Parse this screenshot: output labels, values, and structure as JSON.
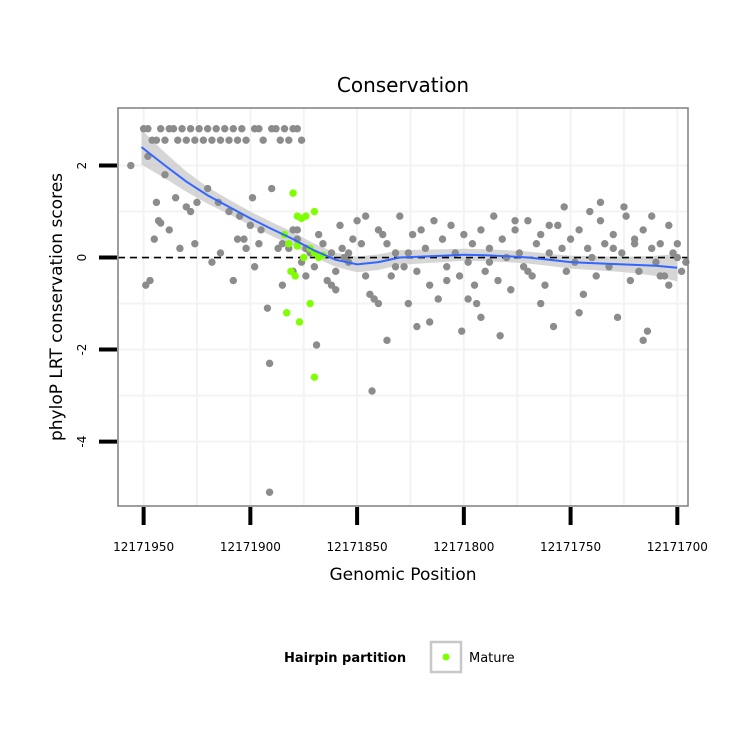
{
  "chart_data": {
    "type": "scatter",
    "title": "Conservation",
    "xlabel": "Genomic Position",
    "ylabel": "phyloP LRT conservation scores",
    "x_reversed": true,
    "xlim": [
      12171962,
      12171695
    ],
    "ylim": [
      -5.4,
      3.25
    ],
    "x_ticks": [
      12171950,
      12171900,
      12171850,
      12171800,
      12171750,
      12171700
    ],
    "x_tick_labels": [
      "12171950",
      "12171900",
      "12171850",
      "12171800",
      "12171750",
      "12171700"
    ],
    "y_ticks": [
      2,
      0,
      -2,
      -4
    ],
    "y_tick_labels": [
      "2",
      "0",
      "-2",
      "-4"
    ],
    "reference_line": {
      "y": 0,
      "style": "dashed"
    },
    "legend": {
      "title": "Hairpin partition",
      "entries": [
        {
          "label": "Mature",
          "color": "#7fff00"
        }
      ]
    },
    "colors": {
      "background_points": "#8c8c8c",
      "mature": "#7fff00",
      "smooth_line": "#3366ff",
      "confidence_band": "#c8c8c8"
    },
    "series": [
      {
        "name": "Other",
        "color": "#8c8c8c",
        "points": [
          [
            12171950,
            2.8
          ],
          [
            12171948,
            2.8
          ],
          [
            12171946,
            2.55
          ],
          [
            12171944,
            2.55
          ],
          [
            12171942,
            2.8
          ],
          [
            12171940,
            2.55
          ],
          [
            12171938,
            2.8
          ],
          [
            12171936,
            2.8
          ],
          [
            12171934,
            2.55
          ],
          [
            12171932,
            2.8
          ],
          [
            12171930,
            2.55
          ],
          [
            12171928,
            2.8
          ],
          [
            12171926,
            2.55
          ],
          [
            12171924,
            2.8
          ],
          [
            12171922,
            2.55
          ],
          [
            12171920,
            2.8
          ],
          [
            12171918,
            2.55
          ],
          [
            12171916,
            2.8
          ],
          [
            12171914,
            2.55
          ],
          [
            12171912,
            2.8
          ],
          [
            12171910,
            2.55
          ],
          [
            12171908,
            2.8
          ],
          [
            12171906,
            2.55
          ],
          [
            12171904,
            2.8
          ],
          [
            12171902,
            2.55
          ],
          [
            12171898,
            2.8
          ],
          [
            12171896,
            2.8
          ],
          [
            12171894,
            2.55
          ],
          [
            12171890,
            2.8
          ],
          [
            12171888,
            2.8
          ],
          [
            12171886,
            2.55
          ],
          [
            12171884,
            2.8
          ],
          [
            12171882,
            2.55
          ],
          [
            12171880,
            2.8
          ],
          [
            12171878,
            2.8
          ],
          [
            12171876,
            2.55
          ],
          [
            12171948,
            2.2
          ],
          [
            12171944,
            1.2
          ],
          [
            12171943,
            0.8
          ],
          [
            12171942,
            0.75
          ],
          [
            12171940,
            1.8
          ],
          [
            12171935,
            1.3
          ],
          [
            12171930,
            1.1
          ],
          [
            12171925,
            1.2
          ],
          [
            12171920,
            1.5
          ],
          [
            12171915,
            1.2
          ],
          [
            12171910,
            1.0
          ],
          [
            12171905,
            0.9
          ],
          [
            12171900,
            0.7
          ],
          [
            12171895,
            0.6
          ],
          [
            12171890,
            1.5
          ],
          [
            12171885,
            0.3
          ],
          [
            12171880,
            0.6
          ],
          [
            12171878,
            0.4
          ],
          [
            12171874,
            0.2
          ],
          [
            12171872,
            0.1
          ],
          [
            12171870,
            -0.2
          ],
          [
            12171868,
            0.5
          ],
          [
            12171866,
            0.3
          ],
          [
            12171864,
            -0.5
          ],
          [
            12171862,
            0.1
          ],
          [
            12171860,
            -0.3
          ],
          [
            12171858,
            0.7
          ],
          [
            12171856,
            0.0
          ],
          [
            12171854,
            -0.1
          ],
          [
            12171852,
            0.4
          ],
          [
            12171850,
            0.8
          ],
          [
            12171848,
            0.3
          ],
          [
            12171846,
            0.9
          ],
          [
            12171844,
            -0.8
          ],
          [
            12171842,
            -0.9
          ],
          [
            12171840,
            0.6
          ],
          [
            12171838,
            0.5
          ],
          [
            12171836,
            0.3
          ],
          [
            12171834,
            -0.4
          ],
          [
            12171832,
            0.1
          ],
          [
            12171830,
            0.9
          ],
          [
            12171828,
            -0.2
          ],
          [
            12171826,
            0.1
          ],
          [
            12171824,
            0.5
          ],
          [
            12171822,
            -0.3
          ],
          [
            12171820,
            0.6
          ],
          [
            12171818,
            0.2
          ],
          [
            12171816,
            -0.6
          ],
          [
            12171814,
            0.8
          ],
          [
            12171812,
            -0.9
          ],
          [
            12171810,
            0.4
          ],
          [
            12171808,
            -0.2
          ],
          [
            12171806,
            0.7
          ],
          [
            12171804,
            0.1
          ],
          [
            12171802,
            -0.4
          ],
          [
            12171800,
            0.5
          ],
          [
            12171798,
            -0.1
          ],
          [
            12171796,
            0.3
          ],
          [
            12171794,
            -1.0
          ],
          [
            12171792,
            0.6
          ],
          [
            12171790,
            -0.3
          ],
          [
            12171788,
            0.2
          ],
          [
            12171786,
            0.9
          ],
          [
            12171784,
            -0.5
          ],
          [
            12171782,
            0.4
          ],
          [
            12171780,
            0.0
          ],
          [
            12171778,
            -0.7
          ],
          [
            12171776,
            0.6
          ],
          [
            12171774,
            0.1
          ],
          [
            12171772,
            -0.2
          ],
          [
            12171770,
            0.8
          ],
          [
            12171768,
            -0.4
          ],
          [
            12171766,
            0.3
          ],
          [
            12171764,
            0.5
          ],
          [
            12171762,
            -0.6
          ],
          [
            12171760,
            0.1
          ],
          [
            12171758,
            -1.5
          ],
          [
            12171756,
            0.7
          ],
          [
            12171754,
            0.2
          ],
          [
            12171752,
            -0.3
          ],
          [
            12171750,
            0.4
          ],
          [
            12171748,
            -0.1
          ],
          [
            12171746,
            0.6
          ],
          [
            12171744,
            -0.8
          ],
          [
            12171742,
            0.2
          ],
          [
            12171740,
            0.0
          ],
          [
            12171738,
            -0.4
          ],
          [
            12171736,
            0.8
          ],
          [
            12171734,
            0.3
          ],
          [
            12171732,
            -0.2
          ],
          [
            12171730,
            0.5
          ],
          [
            12171728,
            -1.3
          ],
          [
            12171726,
            0.1
          ],
          [
            12171724,
            0.9
          ],
          [
            12171722,
            -0.5
          ],
          [
            12171720,
            0.4
          ],
          [
            12171718,
            -0.3
          ],
          [
            12171716,
            0.6
          ],
          [
            12171714,
            -1.6
          ],
          [
            12171712,
            0.2
          ],
          [
            12171710,
            -0.1
          ],
          [
            12171708,
            0.3
          ],
          [
            12171706,
            -0.4
          ],
          [
            12171704,
            0.7
          ],
          [
            12171702,
            0.1
          ],
          [
            12171700,
            0.3
          ],
          [
            12171698,
            -0.3
          ],
          [
            12171956,
            2.0
          ],
          [
            12171949,
            -0.6
          ],
          [
            12171947,
            -0.5
          ],
          [
            12171945,
            0.4
          ],
          [
            12171938,
            0.6
          ],
          [
            12171933,
            0.2
          ],
          [
            12171928,
            1.0
          ],
          [
            12171926,
            0.3
          ],
          [
            12171918,
            -0.1
          ],
          [
            12171914,
            0.1
          ],
          [
            12171908,
            -0.5
          ],
          [
            12171906,
            0.4
          ],
          [
            12171902,
            0.2
          ],
          [
            12171898,
            -0.2
          ],
          [
            12171896,
            0.3
          ],
          [
            12171892,
            -1.1
          ],
          [
            12171891,
            -2.3
          ],
          [
            12171885,
            -0.6
          ],
          [
            12171882,
            0.2
          ],
          [
            12171880,
            -0.3
          ],
          [
            12171878,
            0.6
          ],
          [
            12171876,
            -0.1
          ],
          [
            12171874,
            -0.4
          ],
          [
            12171869,
            -1.9
          ],
          [
            12171862,
            -0.6
          ],
          [
            12171860,
            -0.7
          ],
          [
            12171857,
            0.2
          ],
          [
            12171854,
            0.1
          ],
          [
            12171846,
            -0.4
          ],
          [
            12171843,
            -2.9
          ],
          [
            12171840,
            -1.0
          ],
          [
            12171836,
            -1.8
          ],
          [
            12171832,
            -0.2
          ],
          [
            12171826,
            -1.0
          ],
          [
            12171822,
            -1.5
          ],
          [
            12171816,
            -1.4
          ],
          [
            12171808,
            -0.5
          ],
          [
            12171801,
            -1.6
          ],
          [
            12171798,
            -0.9
          ],
          [
            12171795,
            -0.6
          ],
          [
            12171792,
            -1.3
          ],
          [
            12171788,
            -0.1
          ],
          [
            12171783,
            -1.7
          ],
          [
            12171776,
            0.8
          ],
          [
            12171770,
            -0.3
          ],
          [
            12171764,
            -1.0
          ],
          [
            12171760,
            0.7
          ],
          [
            12171753,
            1.1
          ],
          [
            12171746,
            -1.2
          ],
          [
            12171741,
            1.0
          ],
          [
            12171736,
            1.2
          ],
          [
            12171730,
            0.2
          ],
          [
            12171725,
            1.1
          ],
          [
            12171720,
            0.3
          ],
          [
            12171716,
            -1.8
          ],
          [
            12171712,
            0.9
          ],
          [
            12171708,
            -0.4
          ],
          [
            12171704,
            -0.6
          ],
          [
            12171700,
            0.0
          ],
          [
            12171696,
            -0.1
          ],
          [
            12171891,
            -5.1
          ],
          [
            12171903,
            0.4
          ],
          [
            12171899,
            1.3
          ],
          [
            12171887,
            0.2
          ]
        ]
      },
      {
        "name": "Mature",
        "color": "#7fff00",
        "points": [
          [
            12171880,
            1.4
          ],
          [
            12171878,
            0.9
          ],
          [
            12171876,
            0.85
          ],
          [
            12171874,
            0.9
          ],
          [
            12171872,
            0.2
          ],
          [
            12171870,
            0.1
          ],
          [
            12171868,
            0.0
          ],
          [
            12171866,
            0.05
          ],
          [
            12171870,
            1.0
          ],
          [
            12171882,
            0.3
          ],
          [
            12171884,
            0.5
          ],
          [
            12171881,
            -0.3
          ],
          [
            12171879,
            -0.4
          ],
          [
            12171883,
            -1.2
          ],
          [
            12171877,
            -1.4
          ],
          [
            12171872,
            -1.0
          ],
          [
            12171870,
            -2.6
          ],
          [
            12171875,
            0.0
          ],
          [
            12171878,
            0.25
          ]
        ]
      }
    ],
    "smooth": {
      "x": [
        12171951,
        12171940,
        12171930,
        12171920,
        12171910,
        12171900,
        12171890,
        12171880,
        12171870,
        12171860,
        12171850,
        12171840,
        12171830,
        12171820,
        12171810,
        12171800,
        12171790,
        12171780,
        12171770,
        12171760,
        12171750,
        12171740,
        12171730,
        12171720,
        12171710,
        12171700
      ],
      "y": [
        2.4,
        2.0,
        1.65,
        1.35,
        1.1,
        0.85,
        0.62,
        0.4,
        0.15,
        -0.05,
        -0.15,
        -0.1,
        0.0,
        0.02,
        0.04,
        0.06,
        0.05,
        0.03,
        0.0,
        -0.05,
        -0.1,
        -0.12,
        -0.14,
        -0.16,
        -0.18,
        -0.22
      ],
      "se": [
        0.38,
        0.28,
        0.22,
        0.18,
        0.16,
        0.15,
        0.15,
        0.15,
        0.15,
        0.15,
        0.17,
        0.17,
        0.16,
        0.15,
        0.14,
        0.13,
        0.13,
        0.13,
        0.13,
        0.13,
        0.14,
        0.15,
        0.16,
        0.18,
        0.22,
        0.3
      ]
    }
  }
}
